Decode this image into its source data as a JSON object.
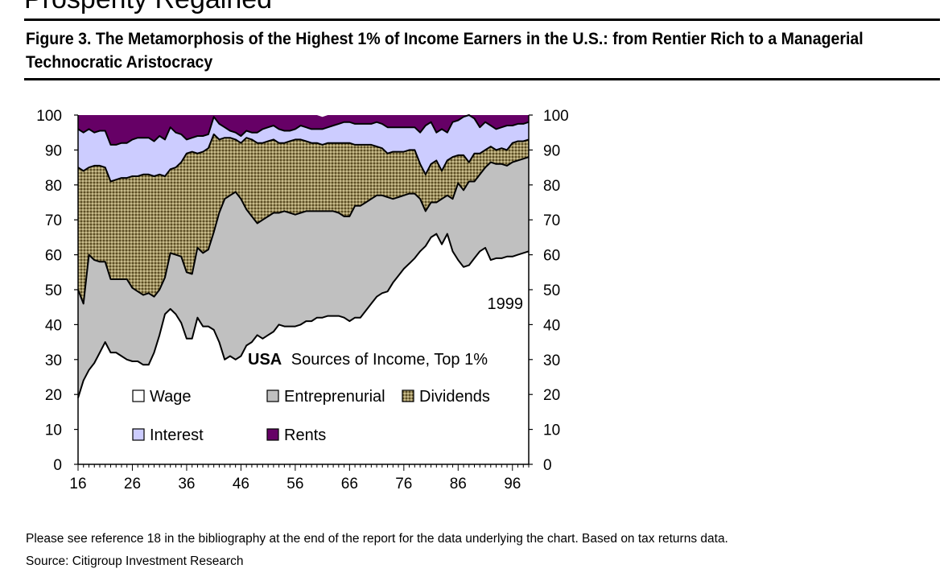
{
  "page": {
    "top_fragment": "Prosperity Regained",
    "figure_title": "Figure 3.  The Metamorphosis of the Highest 1% of Income Earners in the U.S.:  from Rentier Rich to a Managerial Technocratic Aristocracy",
    "note": "Please see reference 18 in the bibliography at the end of the report for the data underlying the chart.  Based on tax returns data.",
    "source": "Source:  Citigroup Investment Research"
  },
  "chart_data": {
    "type": "area",
    "stacked": true,
    "inner_title_bold": "USA",
    "inner_title": "Sources of Income, Top 1%",
    "end_label": "1999",
    "xlabel": "",
    "ylabel": "",
    "xlim": [
      16,
      99
    ],
    "ylim": [
      0,
      100
    ],
    "x_ticks": [
      "16",
      "26",
      "36",
      "46",
      "56",
      "66",
      "76",
      "86",
      "96"
    ],
    "y_ticks": [
      "0",
      "10",
      "20",
      "30",
      "40",
      "50",
      "60",
      "70",
      "80",
      "90",
      "100"
    ],
    "grid": false,
    "legend_position": "inside, lower center",
    "x": [
      16,
      17,
      18,
      19,
      20,
      21,
      22,
      23,
      24,
      25,
      26,
      27,
      28,
      29,
      30,
      31,
      32,
      33,
      34,
      35,
      36,
      37,
      38,
      39,
      40,
      41,
      42,
      43,
      44,
      45,
      46,
      47,
      48,
      49,
      50,
      51,
      52,
      53,
      54,
      55,
      56,
      57,
      58,
      59,
      60,
      61,
      62,
      63,
      64,
      65,
      66,
      67,
      68,
      69,
      70,
      71,
      72,
      73,
      74,
      75,
      76,
      77,
      78,
      79,
      80,
      81,
      82,
      83,
      84,
      85,
      86,
      87,
      88,
      89,
      90,
      91,
      92,
      93,
      94,
      95,
      96,
      97,
      98,
      99
    ],
    "series": [
      {
        "name": "Wage",
        "color": "#ffffff",
        "values": [
          19,
          24,
          27,
          29,
          32,
          35,
          32,
          32,
          31,
          30,
          29.5,
          29.5,
          28.5,
          28.5,
          32,
          37,
          43,
          44.5,
          43,
          40.5,
          36,
          36,
          42,
          39.5,
          39.5,
          38.5,
          35,
          30,
          31,
          30,
          31,
          34,
          35,
          37,
          36,
          37,
          38,
          40,
          39.5,
          39.5,
          39.5,
          40,
          41,
          41,
          42,
          42,
          42.5,
          42.5,
          42.5,
          42,
          41,
          42,
          42,
          44,
          46,
          48,
          49,
          49.5,
          52,
          54,
          56,
          57.5,
          59,
          61,
          62.5,
          65,
          66,
          63,
          66,
          61,
          58.5,
          56.5,
          57,
          59,
          61,
          62,
          58.5,
          59,
          59,
          59.5,
          59.5,
          60,
          60.5,
          61
        ]
      },
      {
        "name": "Entreprenurial",
        "color": "#c0c0c0",
        "values": [
          31,
          22,
          33,
          29.5,
          26,
          23,
          21,
          21,
          22,
          23,
          21,
          20,
          20,
          20.5,
          16,
          13,
          10.5,
          16,
          17,
          19,
          19,
          18.5,
          20,
          21,
          22,
          28,
          37,
          46,
          46,
          48,
          45,
          39,
          36,
          32,
          34,
          34,
          34,
          32,
          33,
          32.5,
          32,
          32,
          31.5,
          31.5,
          30.5,
          30.5,
          30,
          30,
          29.5,
          29,
          30,
          32,
          32,
          31,
          30,
          29,
          28,
          27,
          24,
          22.5,
          21,
          20,
          18.5,
          15,
          10,
          10,
          9,
          13,
          11,
          15,
          22,
          22,
          24,
          22,
          22,
          23,
          28,
          27,
          27,
          26,
          27,
          27,
          27,
          27
        ]
      },
      {
        "name": "Dividends",
        "color": "#8c7a4a",
        "values": [
          35,
          38,
          25,
          27,
          27.5,
          27,
          28,
          28.5,
          29,
          29,
          32,
          33,
          34.5,
          34,
          34.5,
          33,
          29,
          24,
          25,
          27,
          34,
          35,
          27,
          29,
          29,
          28,
          21,
          17.5,
          16.5,
          15,
          16,
          20.5,
          22,
          23,
          22,
          21.5,
          21,
          20,
          19.5,
          20.5,
          21.5,
          21,
          20,
          19.5,
          19.5,
          19,
          19.5,
          19.5,
          20,
          21,
          21,
          17.5,
          17.5,
          16.5,
          15.5,
          14,
          13.5,
          12.5,
          13.5,
          13,
          12.5,
          12.5,
          12.5,
          10,
          10.5,
          11,
          12,
          8,
          10,
          12,
          8,
          10,
          5.5,
          8,
          6,
          5,
          4.5,
          4,
          4.5,
          4.5,
          5.5,
          5.5,
          5,
          5
        ]
      },
      {
        "name": "Interest",
        "color": "#ccccff",
        "values": [
          11,
          11,
          11,
          9.5,
          10,
          10.5,
          10.5,
          10,
          10,
          10,
          10.5,
          11,
          10.5,
          10.5,
          10,
          11,
          10.5,
          12,
          10,
          8,
          4,
          4,
          5,
          4.5,
          4,
          5,
          4.5,
          3,
          2,
          2,
          2,
          2,
          2,
          3,
          4,
          4,
          4,
          4,
          3.5,
          3,
          3,
          4,
          4,
          4,
          4,
          4.5,
          4.5,
          5,
          5.5,
          6,
          6,
          6,
          6,
          6,
          6,
          7,
          7,
          7.5,
          7,
          7,
          7,
          6.5,
          6.5,
          9,
          14,
          12,
          8,
          12,
          8,
          10,
          10,
          11,
          14,
          10,
          7.5,
          8,
          6,
          6,
          6,
          7,
          5,
          5,
          5,
          5
        ]
      },
      {
        "name": "Rents",
        "color": "#660066",
        "values": [
          4,
          5,
          4.5,
          5,
          4.5,
          4.5,
          8.5,
          8.5,
          8,
          8,
          7,
          6.5,
          6.5,
          6.5,
          7.5,
          6,
          7,
          3.5,
          5,
          5.5,
          7,
          6.5,
          6,
          6,
          5.5,
          4.5,
          2.5,
          3.5,
          4.5,
          5,
          6,
          4.5,
          5,
          5,
          4,
          3.5,
          3,
          4,
          4.5,
          5,
          4,
          3,
          3.5,
          4,
          4,
          3.5,
          3.5,
          3,
          2.5,
          2,
          2,
          2.5,
          2.5,
          2.5,
          2.5,
          2,
          2.5,
          3.5,
          3.5,
          3.5,
          3.5,
          3.5,
          3.5,
          5,
          3,
          2,
          5,
          4,
          5,
          2,
          1.5,
          1.5,
          1.5,
          2,
          3.5,
          2,
          3,
          4,
          3.5,
          3,
          3,
          2.5,
          2.5,
          2
        ]
      }
    ]
  }
}
